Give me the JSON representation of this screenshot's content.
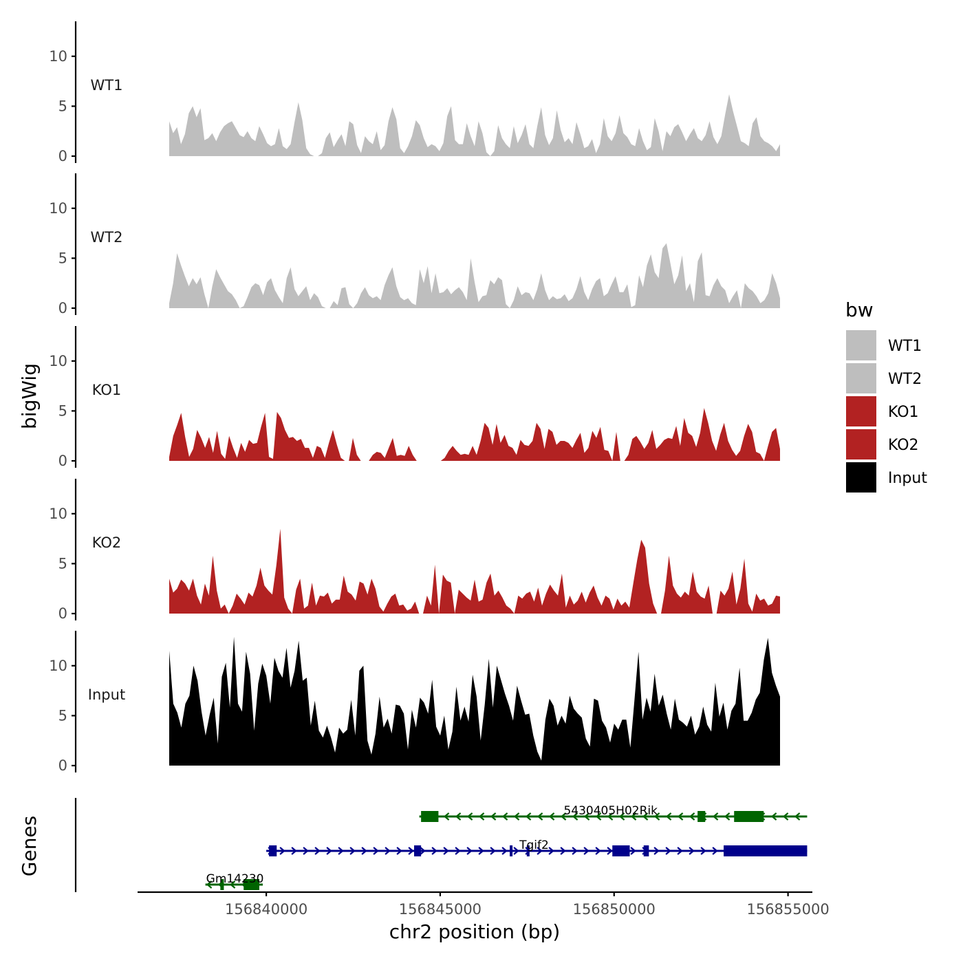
{
  "chart_data": {
    "type": "area",
    "title": "",
    "xlabel": "chr2 position (bp)",
    "ylabel": "bigWig",
    "genes_label": "Genes",
    "xlim": [
      156836300,
      156855700
    ],
    "xticks": [
      156840000,
      156845000,
      156850000,
      156855000
    ],
    "xtick_labels": [
      "156840000",
      "156845000",
      "156850000",
      "156855000"
    ],
    "ylim": [
      0,
      13.5
    ],
    "yticks": [
      0,
      5,
      10
    ],
    "ytick_labels": [
      "0",
      "5",
      "10"
    ],
    "data_range": [
      156838300,
      156855550
    ],
    "legend": {
      "title": "bw",
      "entries": [
        {
          "label": "WT1",
          "color": "#bebebe"
        },
        {
          "label": "WT2",
          "color": "#bebebe"
        },
        {
          "label": "KO1",
          "color": "#b22222"
        },
        {
          "label": "KO2",
          "color": "#b22222"
        },
        {
          "label": "Input",
          "color": "#000000"
        }
      ]
    },
    "series": [
      {
        "name": "WT1",
        "color": "#bebebe",
        "values": [
          3.5,
          2.3,
          2.9,
          1.2,
          2.2,
          4.3,
          5.0,
          3.9,
          4.8,
          1.6,
          1.8,
          2.3,
          1.5,
          2.4,
          3.0,
          3.3,
          3.5,
          2.8,
          2.1,
          1.9,
          2.5,
          1.8,
          1.5,
          3.0,
          2.2,
          1.3,
          1.0,
          1.2,
          2.8,
          1.0,
          0.7,
          1.2,
          3.4,
          5.4,
          3.6,
          0.8,
          0.2,
          0,
          0,
          0.3,
          1.8,
          2.4,
          0.9,
          1.6,
          2.2,
          1.0,
          3.5,
          3.2,
          1.1,
          0.3,
          2.0,
          1.5,
          1.2,
          2.5,
          0.6,
          1.1,
          3.5,
          4.9,
          3.7,
          0.8,
          0.3,
          1.0,
          2.0,
          3.6,
          3.1,
          1.8,
          0.9,
          1.2,
          1.0,
          0.5,
          1.3,
          4.0,
          5.0,
          1.6,
          1.2,
          1.2,
          3.3,
          2.0,
          1.0,
          3.5,
          2.3,
          0.4,
          0,
          0.5,
          3.1,
          1.8,
          1.2,
          0.8,
          3.0,
          1.3,
          2.1,
          3.2,
          1.2,
          0.8,
          3.0,
          4.9,
          2.1,
          1.1,
          1.8,
          4.6,
          2.6,
          1.4,
          1.8,
          1.2,
          3.4,
          2.2,
          0.8,
          1.0,
          1.7,
          0.3,
          1.2,
          3.8,
          2.0,
          1.5,
          2.3,
          4.1,
          2.3,
          1.9,
          1.2,
          1.0,
          2.8,
          1.5,
          0.6,
          0.9,
          3.8,
          2.5,
          0.5,
          2.5,
          2.0,
          2.9,
          3.2,
          2.4,
          1.5,
          2.2,
          2.8,
          1.8,
          1.5,
          2.1,
          3.5,
          1.9,
          1.2,
          2.0,
          4.2,
          6.2,
          4.5,
          3.0,
          1.5,
          1.3,
          1.0,
          3.3,
          3.9,
          2.0,
          1.5,
          1.3,
          1.0,
          0.5,
          1.2
        ]
      },
      {
        "name": "WT2",
        "color": "#bebebe",
        "values": [
          0.5,
          2.5,
          5.5,
          4.3,
          3.2,
          2.2,
          3.0,
          2.4,
          3.1,
          1.4,
          0,
          2.2,
          3.9,
          3.1,
          2.4,
          1.7,
          1.4,
          0.8,
          0,
          0.2,
          1.1,
          2.1,
          2.5,
          2.3,
          1.3,
          2.6,
          3.0,
          1.8,
          1.1,
          0.5,
          3.0,
          4.1,
          1.9,
          1.2,
          1.7,
          2.2,
          0.8,
          1.5,
          1.1,
          0.2,
          0,
          0,
          0.7,
          0.3,
          2.0,
          2.1,
          0.4,
          0,
          0.5,
          1.5,
          2.1,
          1.3,
          1.0,
          1.2,
          0.8,
          2.3,
          3.3,
          4.1,
          2.2,
          1.1,
          0.8,
          1.0,
          0.5,
          0.3,
          3.9,
          2.5,
          4.2,
          1.5,
          3.5,
          1.5,
          1.6,
          2.0,
          1.4,
          1.8,
          2.1,
          1.6,
          0.8,
          5.0,
          2.6,
          0.6,
          1.2,
          1.3,
          2.8,
          2.4,
          3.1,
          2.8,
          0.4,
          0,
          0.8,
          2.2,
          1.3,
          1.6,
          1.5,
          0.8,
          1.9,
          3.5,
          1.8,
          0.8,
          1.2,
          0.9,
          1.0,
          1.4,
          0.7,
          1.0,
          1.9,
          3.2,
          1.6,
          0.8,
          1.9,
          2.7,
          3.0,
          1.2,
          1.5,
          2.4,
          3.2,
          1.6,
          1.6,
          2.4,
          0.1,
          0.3,
          3.3,
          2.1,
          4.3,
          5.4,
          3.6,
          3.0,
          6.0,
          6.5,
          4.5,
          2.4,
          3.3,
          5.3,
          1.7,
          2.5,
          0.6,
          4.7,
          5.6,
          1.3,
          1.2,
          2.3,
          3.0,
          2.2,
          1.8,
          0.5,
          1.2,
          1.8,
          0,
          2.5,
          2.0,
          1.7,
          1.2,
          0.5,
          0.8,
          1.5,
          3.5,
          2.5,
          1.0
        ]
      },
      {
        "name": "KO1",
        "color": "#b22222",
        "values": [
          0.4,
          2.5,
          3.6,
          4.8,
          2.4,
          0.4,
          1.2,
          3.1,
          2.3,
          1.3,
          2.4,
          0.8,
          3.0,
          0.7,
          0.2,
          2.5,
          1.3,
          0.3,
          1.8,
          0.9,
          2.1,
          1.7,
          1.8,
          3.4,
          4.8,
          0.4,
          0.2,
          4.9,
          4.3,
          3.1,
          2.3,
          2.4,
          2.0,
          2.2,
          1.3,
          1.3,
          0.3,
          1.5,
          1.3,
          0.3,
          1.8,
          3.1,
          1.6,
          0.3,
          0,
          0,
          2.3,
          0.6,
          0,
          0,
          0,
          0.6,
          0.9,
          0.8,
          0.3,
          1.3,
          2.3,
          0.5,
          0.6,
          0.5,
          1.5,
          0.6,
          0,
          0,
          0,
          0,
          0,
          0,
          0,
          0.3,
          1.0,
          1.5,
          1.0,
          0.6,
          0.7,
          0.6,
          1.5,
          0.6,
          2.0,
          3.8,
          3.3,
          1.6,
          3.7,
          1.8,
          2.6,
          1.5,
          1.3,
          0.6,
          2.1,
          1.6,
          1.5,
          2.0,
          3.8,
          3.2,
          1.2,
          3.2,
          2.9,
          1.6,
          2.0,
          2.0,
          1.8,
          1.3,
          2.1,
          2.8,
          0.8,
          1.3,
          3.0,
          2.3,
          3.4,
          1.1,
          1.0,
          0,
          2.9,
          0,
          0,
          0.6,
          2.2,
          2.5,
          1.9,
          1.2,
          1.8,
          3.1,
          1.2,
          1.6,
          2.1,
          2.3,
          2.2,
          3.5,
          1.5,
          4.3,
          2.8,
          2.5,
          1.4,
          2.8,
          5.3,
          3.8,
          2.0,
          1.0,
          2.6,
          3.8,
          2.0,
          1.1,
          0.5,
          1.0,
          2.5,
          3.7,
          2.9,
          0.9,
          0.7,
          0,
          1.5,
          2.9,
          3.3,
          1.2
        ]
      },
      {
        "name": "KO2",
        "color": "#b22222",
        "values": [
          3.5,
          2.1,
          2.5,
          3.4,
          3.0,
          2.3,
          3.5,
          1.8,
          0.9,
          3.0,
          1.8,
          5.8,
          2.3,
          0.5,
          0.9,
          0,
          0.8,
          2.0,
          1.5,
          0.9,
          2.1,
          1.7,
          2.8,
          4.6,
          2.8,
          2.3,
          1.9,
          4.8,
          8.5,
          1.6,
          0.5,
          0,
          2.4,
          3.5,
          0.5,
          0.8,
          3.1,
          0.8,
          1.8,
          1.7,
          2.1,
          1.0,
          1.4,
          1.4,
          3.8,
          2.2,
          1.9,
          1.3,
          3.2,
          3.0,
          1.9,
          3.5,
          2.5,
          0.7,
          0.2,
          1.0,
          1.7,
          2.0,
          0.8,
          0.9,
          0.3,
          0.5,
          1.2,
          0,
          0,
          1.8,
          0.8,
          4.9,
          0,
          3.9,
          3.3,
          3.1,
          0,
          2.4,
          2.0,
          1.6,
          1.3,
          3.4,
          1.2,
          1.4,
          3.1,
          4.0,
          1.8,
          2.3,
          1.6,
          0.8,
          0.5,
          0,
          1.8,
          1.5,
          2.0,
          2.2,
          1.2,
          2.6,
          0.8,
          2.0,
          2.9,
          2.3,
          1.8,
          4.0,
          0.6,
          1.8,
          0.9,
          1.3,
          2.2,
          1.1,
          2.1,
          2.8,
          1.6,
          0.8,
          1.8,
          1.5,
          0.4,
          1.5,
          0.8,
          1.2,
          0.6,
          3.0,
          5.4,
          7.4,
          6.6,
          3.0,
          1.0,
          0,
          0,
          2.3,
          5.8,
          2.8,
          2.0,
          1.6,
          2.2,
          1.8,
          4.2,
          2.2,
          1.7,
          1.5,
          2.8,
          0,
          0,
          2.3,
          1.8,
          2.5,
          4.2,
          0.9,
          2.5,
          5.5,
          1.0,
          0.2,
          2.0,
          1.3,
          1.5,
          0.8,
          1.0,
          1.8,
          1.7
        ]
      },
      {
        "name": "Input",
        "color": "#000000",
        "values": [
          11.5,
          6.2,
          5.3,
          3.8,
          6.2,
          7.0,
          10.0,
          8.5,
          5.4,
          3.0,
          5.1,
          6.8,
          2.2,
          8.9,
          10.3,
          5.8,
          12.9,
          6.2,
          5.4,
          11.4,
          9.2,
          3.5,
          8.2,
          10.2,
          9.0,
          6.2,
          10.8,
          9.5,
          8.8,
          11.8,
          7.8,
          9.5,
          12.5,
          8.5,
          8.8,
          4.0,
          6.5,
          3.5,
          2.8,
          4.0,
          2.8,
          1.3,
          3.8,
          3.2,
          3.6,
          6.6,
          3.0,
          9.5,
          10.0,
          2.5,
          1.1,
          3.2,
          6.9,
          3.8,
          4.7,
          3.2,
          6.1,
          6.0,
          5.2,
          1.6,
          5.6,
          3.8,
          6.8,
          6.3,
          5.2,
          8.6,
          3.9,
          3.0,
          5.0,
          1.6,
          3.4,
          7.9,
          4.5,
          5.9,
          4.4,
          9.1,
          6.9,
          2.5,
          6.1,
          10.7,
          5.8,
          10.0,
          8.6,
          7.2,
          6.0,
          4.5,
          8.0,
          6.5,
          5.1,
          5.2,
          3.0,
          1.4,
          0.5,
          4.6,
          6.7,
          6.0,
          4.0,
          5.0,
          4.2,
          7.0,
          5.7,
          5.2,
          4.8,
          2.7,
          1.9,
          6.7,
          6.5,
          4.5,
          3.8,
          2.3,
          4.2,
          3.6,
          4.6,
          4.6,
          1.8,
          6.5,
          11.4,
          4.6,
          6.8,
          5.4,
          9.2,
          6.0,
          7.1,
          5.2,
          3.6,
          6.7,
          4.6,
          4.3,
          3.9,
          5.0,
          3.1,
          3.9,
          5.9,
          4.1,
          3.4,
          8.3,
          4.9,
          6.3,
          3.6,
          5.5,
          6.2,
          9.8,
          4.5,
          4.5,
          5.3,
          6.6,
          7.3,
          10.6,
          12.8,
          9.3,
          8.0,
          6.9
        ]
      }
    ],
    "genes": [
      {
        "name": "5430405H02Rik",
        "strand": "-",
        "color": "#006400",
        "start": 156844400,
        "end": 156855550,
        "label_pos": 156849900,
        "exons": [
          [
            156844450,
            156844950
          ],
          [
            156852400,
            156852620
          ],
          [
            156853450,
            156854300
          ]
        ]
      },
      {
        "name": "Tgif2",
        "strand": "+",
        "color": "#00008b",
        "start": 156840000,
        "end": 156855550,
        "label_pos": 156847700,
        "exons": [
          [
            156840080,
            156840300
          ],
          [
            156844250,
            156844450
          ],
          [
            156847000,
            156847080
          ],
          [
            156847490,
            156847550
          ],
          [
            156849950,
            156850450
          ],
          [
            156850850,
            156851000
          ],
          [
            156853150,
            156855550
          ]
        ]
      },
      {
        "name": "Gm14230",
        "strand": "-",
        "color": "#006400",
        "start": 156838250,
        "end": 156839900,
        "label_pos": 156839100,
        "exons": [
          [
            156838680,
            156838780
          ],
          [
            156839350,
            156839800
          ]
        ]
      }
    ]
  }
}
